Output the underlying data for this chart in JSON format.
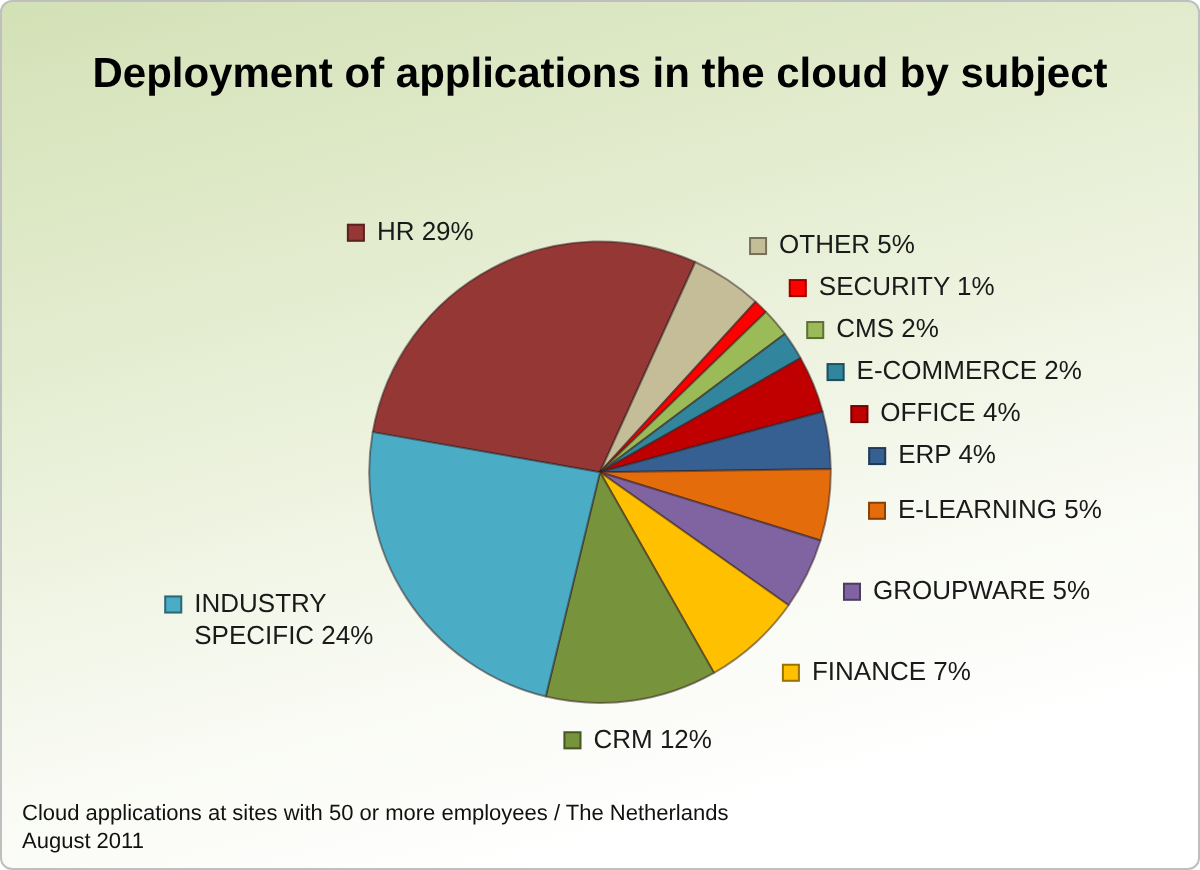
{
  "chart_data": {
    "type": "pie",
    "title": "Deployment of applications in the cloud by subject",
    "categories": [
      "HR",
      "OTHER",
      "SECURITY",
      "CMS",
      "E-COMMERCE",
      "OFFICE",
      "ERP",
      "E-LEARNING",
      "GROUPWARE",
      "FINANCE",
      "CRM",
      "INDUSTRY SPECIFIC"
    ],
    "values": [
      29,
      5,
      1,
      2,
      2,
      4,
      4,
      5,
      5,
      7,
      12,
      24
    ],
    "colors": [
      "#953735",
      "#c4bd97",
      "#ff0000",
      "#9bbb59",
      "#31859c",
      "#c00000",
      "#376092",
      "#e46c0a",
      "#8064a2",
      "#ffc000",
      "#77933c",
      "#4bacc6"
    ],
    "value_labels": [
      "29%",
      "5%",
      "1%",
      "2%",
      "2%",
      "4%",
      "4%",
      "5%",
      "5%",
      "7%",
      "12%",
      "24%"
    ],
    "legend": "right",
    "annotations": [
      "Cloud applications at sites with 50 or more employees / The Netherlands",
      "August 2011"
    ]
  }
}
